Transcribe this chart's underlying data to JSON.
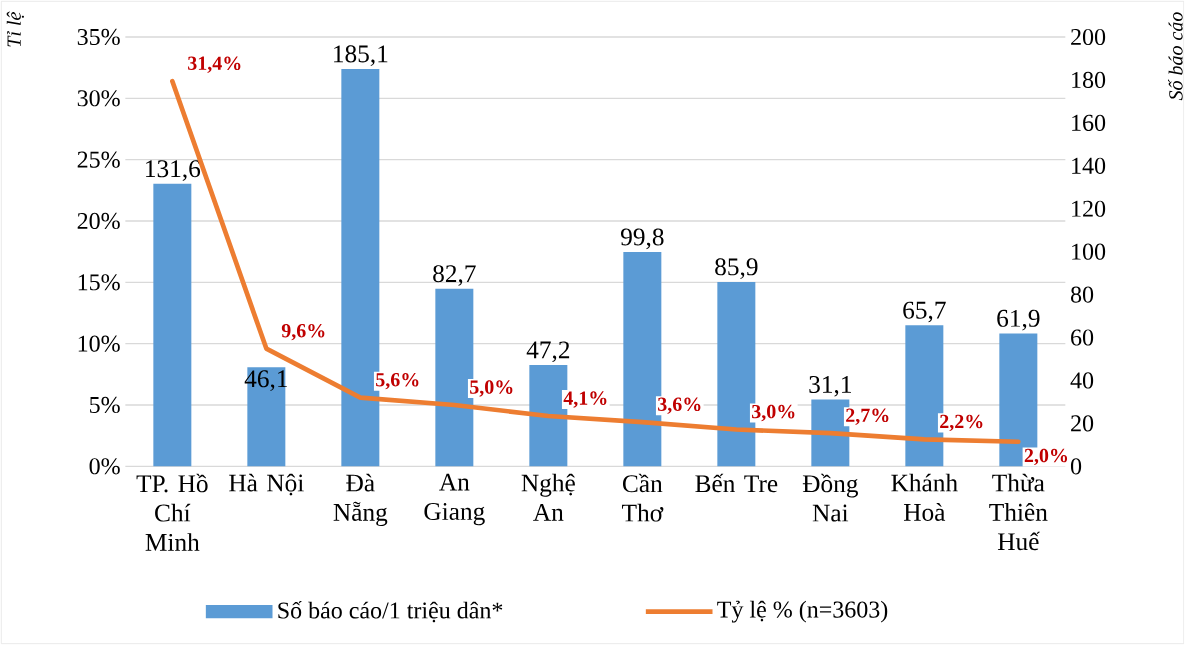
{
  "chart_data": {
    "type": "bar",
    "ylabel": "Tỉ lệ",
    "y2label": "Số báo cáo",
    "categories": [
      "TP. Hồ Chí Minh",
      "Hà Nội",
      "Đà Nẵng",
      "An Giang",
      "Nghệ An",
      "Cần Thơ",
      "Bến Tre",
      "Đồng Nai",
      "Khánh Hoà",
      "Thừa Thiên Huế"
    ],
    "series": [
      {
        "name": "Số báo cáo/1 triệu dân*",
        "axis": "y2",
        "color": "#5b9bd5",
        "values": [
          131.6,
          46.1,
          185.1,
          82.7,
          47.2,
          99.8,
          85.9,
          31.1,
          65.7,
          61.9
        ],
        "value_labels": [
          "131,6",
          "46,1",
          "185,1",
          "82,7",
          "47,2",
          "99,8",
          "85,9",
          "31,1",
          "65,7",
          "61,9"
        ]
      },
      {
        "name": "Tỷ lệ % (n=3603)",
        "type": "line",
        "axis": "y",
        "color": "#ed7d31",
        "marker": "none",
        "values": [
          31.4,
          9.6,
          5.6,
          5.0,
          4.1,
          3.6,
          3.0,
          2.7,
          2.2,
          2.0
        ],
        "value_labels": [
          "31,4%",
          "9,6%",
          "5,6%",
          "5,0%",
          "4,1%",
          "3,6%",
          "3,0%",
          "2,7%",
          "2,2%",
          "2,0%"
        ]
      }
    ],
    "ylim": [
      0,
      35
    ],
    "yticks": [
      {
        "value": 0,
        "label": "0%"
      },
      {
        "value": 5,
        "label": "5%"
      },
      {
        "value": 10,
        "label": "10%"
      },
      {
        "value": 15,
        "label": "15%"
      },
      {
        "value": 20,
        "label": "20%"
      },
      {
        "value": 25,
        "label": "25%"
      },
      {
        "value": 30,
        "label": "30%"
      },
      {
        "value": 35,
        "label": "35%"
      }
    ],
    "y2lim": [
      0,
      200
    ],
    "y2ticks": [
      0,
      20,
      40,
      60,
      80,
      100,
      120,
      140,
      160,
      180,
      200
    ],
    "grid": "y",
    "legend": "bottom"
  }
}
